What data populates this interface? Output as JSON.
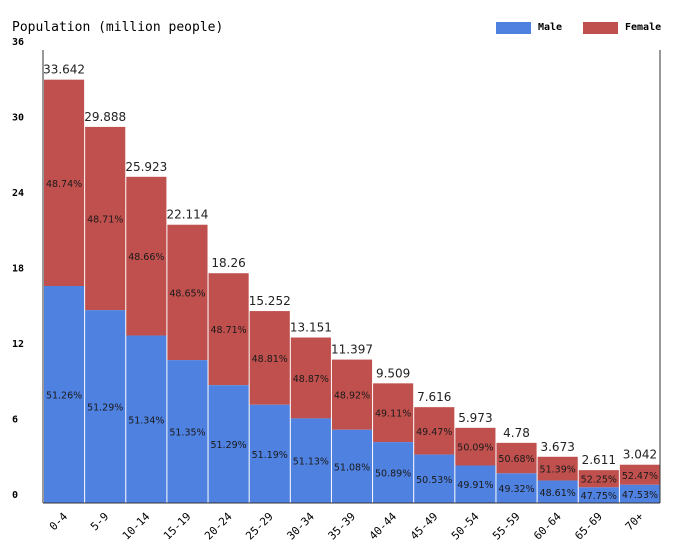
{
  "chart_data": {
    "type": "bar",
    "stacked": true,
    "title": "Population (million people)",
    "categories": [
      "0-4",
      "5-9",
      "10-14",
      "15-19",
      "20-24",
      "25-29",
      "30-34",
      "35-39",
      "40-44",
      "45-49",
      "50-54",
      "55-59",
      "60-64",
      "65-69",
      "70+"
    ],
    "totals": [
      "33.642",
      "29.888",
      "25.923",
      "22.114",
      "18.26",
      "15.252",
      "13.151",
      "11.397",
      "9.509",
      "7.616",
      "5.973",
      "4.78",
      "3.673",
      "2.611",
      "3.042"
    ],
    "series": [
      {
        "name": "Male",
        "color": "#4f81e0",
        "percent_labels": [
          "51.26%",
          "51.29%",
          "51.34%",
          "51.35%",
          "51.29%",
          "51.19%",
          "51.13%",
          "51.08%",
          "50.89%",
          "50.53%",
          "49.91%",
          "49.32%",
          "48.61%",
          "47.75%",
          "47.53%"
        ]
      },
      {
        "name": "Female",
        "color": "#c0504d",
        "percent_labels": [
          "48.74%",
          "48.71%",
          "48.66%",
          "48.65%",
          "48.71%",
          "48.81%",
          "48.87%",
          "48.92%",
          "49.11%",
          "49.47%",
          "50.09%",
          "50.68%",
          "51.39%",
          "52.25%",
          "52.47%"
        ]
      }
    ],
    "ylim": [
      0,
      36
    ],
    "yticks": [
      "0",
      "6",
      "12",
      "18",
      "24",
      "30",
      "36"
    ],
    "legend": "top-right",
    "grid": false
  }
}
